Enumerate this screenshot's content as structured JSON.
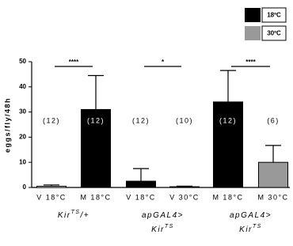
{
  "chart_data": {
    "type": "bar",
    "ylabel": "eggs/fly/48h",
    "categories": [
      "V 18°C",
      "M 18°C",
      "V 18°C",
      "V 30°C",
      "M 18°C",
      "M 30°C"
    ],
    "values": [
      0.5,
      31,
      2.5,
      0.3,
      34,
      10
    ],
    "errors": [
      0.5,
      13.5,
      5,
      0.2,
      12.5,
      6.7
    ],
    "colors": [
      "#ffffff",
      "#000000",
      "#000000",
      "#999999",
      "#000000",
      "#999999"
    ],
    "n_labels": [
      "(12)",
      "(12)",
      "(12)",
      "(10)",
      "(12)",
      "(6)"
    ],
    "significance": [
      "****",
      "*",
      "****"
    ],
    "groups": [
      [
        [
          {
            "text": "Kir"
          },
          {
            "text": "TS",
            "sup": true
          },
          {
            "text": "/+"
          }
        ]
      ],
      [
        [
          {
            "text": "apGAL4>"
          }
        ],
        [
          {
            "text": "Kir"
          },
          {
            "text": "TS",
            "sup": true
          }
        ]
      ],
      [
        [
          {
            "text": "apGAL4>"
          }
        ],
        [
          {
            "text": "Kir"
          },
          {
            "text": "TS",
            "sup": true
          }
        ]
      ]
    ],
    "legend": [
      {
        "name": "18ºC",
        "color": "#000000"
      },
      {
        "name": "30ºC",
        "color": "#999999"
      }
    ],
    "ylim": [
      0,
      50
    ],
    "yticks": [
      0,
      10,
      20,
      30,
      40,
      50
    ]
  }
}
